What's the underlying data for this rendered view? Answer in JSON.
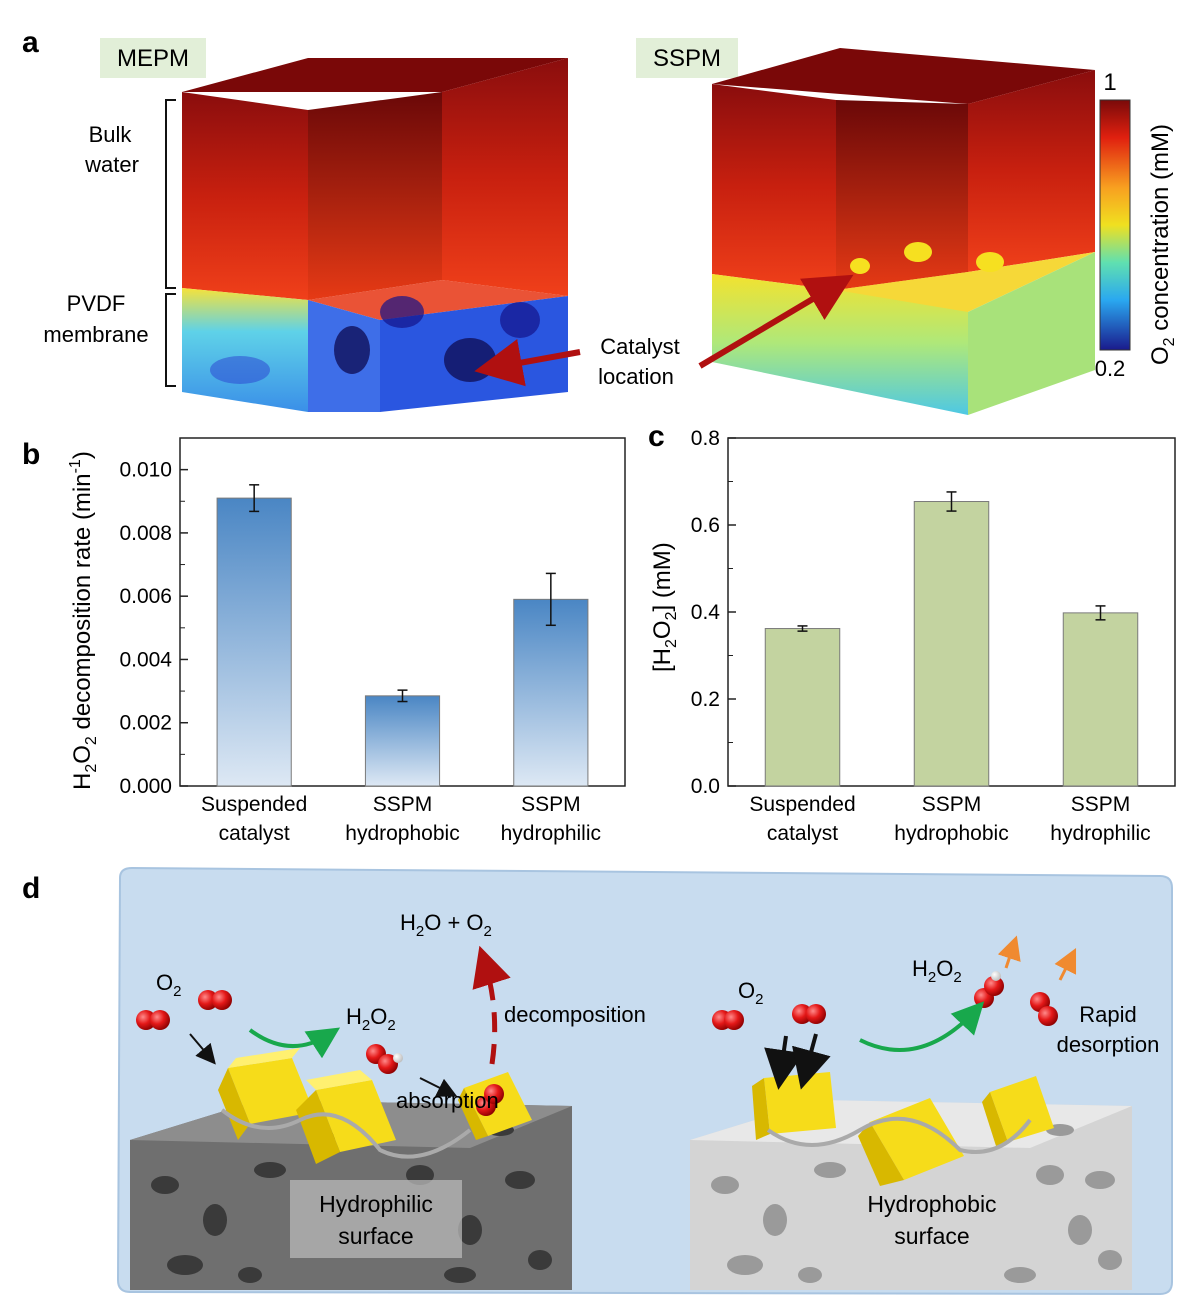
{
  "panel_a": {
    "label": "a",
    "left_tag": "MEPM",
    "right_tag": "SSPM",
    "bulk_line1": "Bulk",
    "bulk_line2": "water",
    "membrane_line1": "PVDF",
    "membrane_line2": "membrane",
    "catalyst_line1": "Catalyst",
    "catalyst_line2": "location",
    "colorbar_max": "1",
    "colorbar_min": "0.2",
    "colorbar_label_prefix": "O",
    "colorbar_label_sub": "2",
    "colorbar_label_suffix": " concentration (mM)",
    "colors": {
      "high": "#7a0a0a",
      "mid": "#f0e020",
      "low": "#1a1a8c"
    }
  },
  "panel_d": {
    "label": "d",
    "h2o_o2_pre": "H",
    "h2o_o2_sub": "2",
    "h2o_o2_post": "O + O",
    "h2o_o2_sub2": "2",
    "o2_left_pre": "O",
    "o2_left_sub": "2",
    "h2o2_left_pre": "H",
    "h2o2_left_sub1": "2",
    "h2o2_left_mid": "O",
    "h2o2_left_sub2": "2",
    "decomposition": "decomposition",
    "absorption": "absorption",
    "hydrophilic_line1": "Hydrophilic",
    "hydrophilic_line2": "surface",
    "o2_right_pre": "O",
    "o2_right_sub": "2",
    "h2o2_right_pre": "H",
    "h2o2_right_sub1": "2",
    "h2o2_right_mid": "O",
    "h2o2_right_sub2": "2",
    "rapid_line1": "Rapid",
    "rapid_line2": "desorption",
    "hydrophobic_line1": "Hydrophobic",
    "hydrophobic_line2": "surface"
  },
  "chart_data": [
    {
      "type": "bar",
      "panel_label": "b",
      "categories": [
        [
          "Suspended",
          "catalyst"
        ],
        [
          "SSPM",
          "hydrophobic"
        ],
        [
          "SSPM",
          "hydrophilic"
        ]
      ],
      "values": [
        0.0091,
        0.00285,
        0.0059
      ],
      "errors": [
        0.00042,
        0.00018,
        0.00082
      ],
      "ylabel_parts": {
        "pre": "H",
        "sub1": "2",
        "mid": "O",
        "sub2": "2",
        "post": " decomposition rate (min",
        "sup": "-1",
        "end": ")"
      },
      "ylim": [
        0,
        0.011
      ],
      "yticks": [
        "0.000",
        "0.002",
        "0.004",
        "0.006",
        "0.008",
        "0.010"
      ],
      "bar_color": "#4a86c4"
    },
    {
      "type": "bar",
      "panel_label": "c",
      "categories": [
        [
          "Suspended",
          "catalyst"
        ],
        [
          "SSPM",
          "hydrophobic"
        ],
        [
          "SSPM",
          "hydrophilic"
        ]
      ],
      "values": [
        0.362,
        0.654,
        0.398
      ],
      "errors": [
        0.006,
        0.022,
        0.016
      ],
      "ylabel_parts": {
        "pre": "[H",
        "sub1": "2",
        "mid": "O",
        "sub2": "2",
        "post": "] (mM)"
      },
      "ylim": [
        0,
        0.8
      ],
      "yticks": [
        "0.0",
        "0.2",
        "0.4",
        "0.6",
        "0.8"
      ],
      "bar_color": "#c3d3a0"
    }
  ]
}
